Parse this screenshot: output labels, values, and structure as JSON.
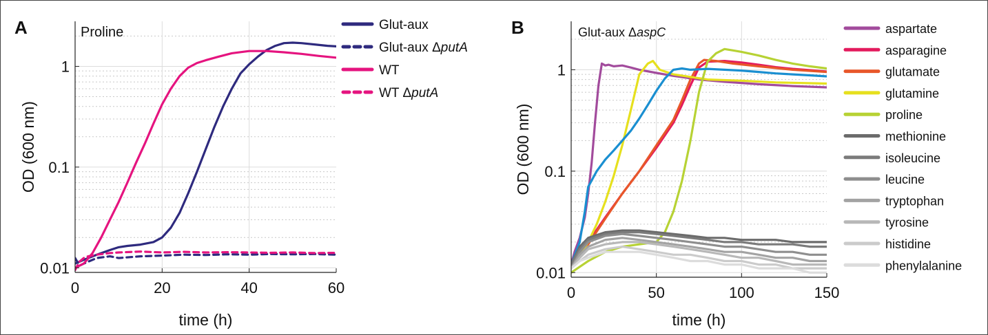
{
  "chart_data": [
    {
      "type": "line",
      "panel_label": "A",
      "title": "Proline",
      "xlabel": "time (h)",
      "ylabel": "OD (600 nm)",
      "xlim": [
        0,
        60
      ],
      "ylim": [
        0.009,
        2.8
      ],
      "yscale": "log",
      "grid": true,
      "legend_position": "outside-right",
      "xticks": [
        0,
        20,
        40,
        60
      ],
      "xtick_labels": [
        "0",
        "20",
        "40",
        "60"
      ],
      "yticks": [
        0.01,
        0.1,
        1
      ],
      "ytick_labels": [
        "0.01",
        "0.1",
        "1"
      ],
      "series": [
        {
          "name": "Glut-aux",
          "color": "#2e2a7e",
          "dash": "solid",
          "x": [
            0,
            2,
            5,
            8,
            10,
            12,
            15,
            18,
            20,
            22,
            24,
            26,
            28,
            30,
            32,
            34,
            36,
            38,
            40,
            42,
            44,
            46,
            48,
            50,
            52,
            55,
            58,
            60
          ],
          "y": [
            0.011,
            0.012,
            0.0135,
            0.015,
            0.016,
            0.0165,
            0.017,
            0.018,
            0.02,
            0.025,
            0.035,
            0.055,
            0.09,
            0.15,
            0.25,
            0.4,
            0.6,
            0.85,
            1.05,
            1.25,
            1.45,
            1.6,
            1.7,
            1.72,
            1.7,
            1.65,
            1.6,
            1.58
          ]
        },
        {
          "name": "Glut-aux ΔputA",
          "color": "#2e2a7e",
          "dash": "dashed",
          "x": [
            0,
            1,
            2,
            3,
            5,
            8,
            10,
            15,
            20,
            25,
            30,
            35,
            40,
            45,
            50,
            55,
            60
          ],
          "y": [
            0.0125,
            0.0105,
            0.011,
            0.0115,
            0.0125,
            0.013,
            0.0125,
            0.013,
            0.0132,
            0.0135,
            0.0134,
            0.0136,
            0.0135,
            0.0137,
            0.0136,
            0.0137,
            0.0135
          ]
        },
        {
          "name": "WT",
          "color": "#e5147f",
          "dash": "solid",
          "x": [
            0,
            2,
            4,
            6,
            8,
            10,
            12,
            14,
            16,
            18,
            20,
            22,
            24,
            26,
            28,
            30,
            33,
            36,
            40,
            44,
            48,
            52,
            56,
            60
          ],
          "y": [
            0.01,
            0.011,
            0.014,
            0.02,
            0.03,
            0.045,
            0.07,
            0.11,
            0.17,
            0.27,
            0.42,
            0.6,
            0.8,
            0.97,
            1.08,
            1.15,
            1.25,
            1.35,
            1.42,
            1.42,
            1.38,
            1.33,
            1.27,
            1.22
          ]
        },
        {
          "name": "WT ΔputA",
          "color": "#e5147f",
          "dash": "dashed",
          "x": [
            0,
            1,
            2,
            3,
            5,
            8,
            10,
            15,
            20,
            25,
            30,
            35,
            40,
            45,
            50,
            55,
            60
          ],
          "y": [
            0.0095,
            0.0115,
            0.0125,
            0.013,
            0.0135,
            0.014,
            0.0142,
            0.0145,
            0.0142,
            0.0144,
            0.0142,
            0.0143,
            0.0142,
            0.0141,
            0.0142,
            0.014,
            0.0141
          ]
        }
      ]
    },
    {
      "type": "line",
      "panel_label": "B",
      "title": "Glut-aux ΔaspC",
      "xlabel": "time (h)",
      "ylabel": "OD (600 nm)",
      "xlim": [
        0,
        150
      ],
      "ylim": [
        0.009,
        3.0
      ],
      "yscale": "log",
      "grid": true,
      "legend_position": "outside-right",
      "xticks": [
        0,
        50,
        100,
        150
      ],
      "xtick_labels": [
        "0",
        "50",
        "100",
        "150"
      ],
      "yticks": [
        0.01,
        0.1,
        1
      ],
      "ytick_labels": [
        "0.01",
        "0.1",
        "1"
      ],
      "series": [
        {
          "name": "aspartate",
          "color": "#a24b9c",
          "x": [
            0,
            2,
            5,
            8,
            10,
            12,
            14,
            16,
            18,
            20,
            22,
            25,
            30,
            35,
            40,
            50,
            60,
            75,
            90,
            110,
            130,
            150
          ],
          "y": [
            0.012,
            0.016,
            0.022,
            0.035,
            0.06,
            0.12,
            0.3,
            0.7,
            1.15,
            1.1,
            1.12,
            1.08,
            1.1,
            1.05,
            1.0,
            0.93,
            0.87,
            0.8,
            0.76,
            0.72,
            0.69,
            0.67
          ]
        },
        {
          "name": "asparagine",
          "color": "#e31b5d",
          "x": [
            0,
            10,
            20,
            30,
            40,
            50,
            60,
            65,
            70,
            75,
            80,
            90,
            100,
            110,
            120,
            130,
            140,
            150
          ],
          "y": [
            0.013,
            0.02,
            0.035,
            0.06,
            0.1,
            0.17,
            0.3,
            0.45,
            0.7,
            1.05,
            1.2,
            1.22,
            1.18,
            1.12,
            1.06,
            1.02,
            0.99,
            0.96
          ]
        },
        {
          "name": "glutamate",
          "color": "#e8572a",
          "x": [
            0,
            10,
            20,
            30,
            40,
            50,
            60,
            65,
            70,
            75,
            78,
            85,
            95,
            110,
            130,
            150
          ],
          "y": [
            0.012,
            0.019,
            0.034,
            0.06,
            0.1,
            0.18,
            0.32,
            0.5,
            0.8,
            1.15,
            1.25,
            1.22,
            1.15,
            1.08,
            1.0,
            0.95
          ]
        },
        {
          "name": "glutamine",
          "color": "#e6e01e",
          "x": [
            0,
            5,
            10,
            15,
            20,
            25,
            30,
            35,
            40,
            45,
            48,
            52,
            60,
            70,
            80,
            100,
            120,
            150
          ],
          "y": [
            0.012,
            0.015,
            0.02,
            0.03,
            0.05,
            0.09,
            0.18,
            0.4,
            0.9,
            1.15,
            1.22,
            1.0,
            0.9,
            0.85,
            0.8,
            0.78,
            0.75,
            0.73
          ]
        },
        {
          "name": "proline",
          "color": "#b7d234",
          "x": [
            0,
            10,
            20,
            30,
            40,
            50,
            55,
            60,
            65,
            70,
            75,
            80,
            85,
            90,
            95,
            100,
            110,
            120,
            130,
            140,
            150
          ],
          "y": [
            0.01,
            0.013,
            0.016,
            0.018,
            0.019,
            0.02,
            0.025,
            0.04,
            0.08,
            0.2,
            0.6,
            1.2,
            1.45,
            1.6,
            1.55,
            1.5,
            1.38,
            1.25,
            1.15,
            1.08,
            1.03
          ]
        },
        {
          "name": "",
          "color": "#1a8fd1",
          "x": [
            0,
            5,
            8,
            10,
            15,
            20,
            25,
            30,
            35,
            40,
            45,
            50,
            55,
            60,
            65,
            70,
            80,
            90,
            100,
            110,
            120,
            130,
            140,
            150
          ],
          "y": [
            0.012,
            0.02,
            0.04,
            0.07,
            0.1,
            0.13,
            0.16,
            0.2,
            0.25,
            0.33,
            0.45,
            0.62,
            0.82,
            1.0,
            1.03,
            1.0,
            1.02,
            1.0,
            0.98,
            0.95,
            0.92,
            0.9,
            0.88,
            0.86
          ]
        },
        {
          "name": "methionine",
          "color": "#6b6b6b",
          "x": [
            0,
            5,
            10,
            20,
            30,
            40,
            50,
            60,
            70,
            80,
            90,
            100,
            110,
            120,
            130,
            140,
            150
          ],
          "y": [
            0.012,
            0.018,
            0.022,
            0.025,
            0.026,
            0.026,
            0.025,
            0.024,
            0.023,
            0.022,
            0.022,
            0.021,
            0.021,
            0.021,
            0.02,
            0.02,
            0.02
          ]
        },
        {
          "name": "isoleucine",
          "color": "#7b7b7b",
          "x": [
            0,
            5,
            10,
            20,
            30,
            40,
            50,
            60,
            70,
            80,
            90,
            100,
            110,
            120,
            130,
            140,
            150
          ],
          "y": [
            0.012,
            0.017,
            0.021,
            0.024,
            0.025,
            0.025,
            0.024,
            0.023,
            0.022,
            0.021,
            0.02,
            0.02,
            0.019,
            0.019,
            0.019,
            0.018,
            0.018
          ]
        },
        {
          "name": "leucine",
          "color": "#8e8e8e",
          "x": [
            0,
            5,
            10,
            20,
            30,
            40,
            50,
            60,
            70,
            80,
            90,
            100,
            110,
            120,
            130,
            140,
            150
          ],
          "y": [
            0.011,
            0.016,
            0.02,
            0.023,
            0.024,
            0.023,
            0.022,
            0.021,
            0.02,
            0.019,
            0.018,
            0.018,
            0.017,
            0.016,
            0.016,
            0.015,
            0.015
          ]
        },
        {
          "name": "tryptophan",
          "color": "#a3a3a3",
          "x": [
            0,
            5,
            10,
            20,
            30,
            40,
            50,
            60,
            70,
            80,
            90,
            100,
            110,
            120,
            130,
            140,
            150
          ],
          "y": [
            0.011,
            0.015,
            0.018,
            0.021,
            0.022,
            0.021,
            0.02,
            0.019,
            0.018,
            0.017,
            0.016,
            0.016,
            0.015,
            0.014,
            0.014,
            0.013,
            0.013
          ]
        },
        {
          "name": "tyrosine",
          "color": "#b8b8b8",
          "x": [
            0,
            5,
            10,
            20,
            30,
            40,
            50,
            60,
            70,
            80,
            90,
            100,
            110,
            120,
            130,
            140,
            150
          ],
          "y": [
            0.011,
            0.014,
            0.017,
            0.019,
            0.02,
            0.02,
            0.019,
            0.018,
            0.017,
            0.016,
            0.015,
            0.014,
            0.014,
            0.013,
            0.012,
            0.012,
            0.012
          ]
        },
        {
          "name": "histidine",
          "color": "#cbcbcb",
          "x": [
            0,
            5,
            10,
            20,
            30,
            40,
            50,
            60,
            70,
            80,
            90,
            100,
            110,
            120,
            130,
            140,
            150
          ],
          "y": [
            0.011,
            0.013,
            0.015,
            0.017,
            0.018,
            0.017,
            0.016,
            0.015,
            0.015,
            0.014,
            0.013,
            0.013,
            0.012,
            0.012,
            0.011,
            0.011,
            0.011
          ]
        },
        {
          "name": "phenylalanine",
          "color": "#dcdcdc",
          "x": [
            0,
            5,
            10,
            20,
            30,
            40,
            50,
            60,
            70,
            80,
            90,
            100,
            110,
            120,
            130,
            140,
            150
          ],
          "y": [
            0.011,
            0.013,
            0.014,
            0.016,
            0.016,
            0.016,
            0.015,
            0.014,
            0.013,
            0.013,
            0.012,
            0.012,
            0.011,
            0.011,
            0.011,
            0.01,
            0.01
          ]
        }
      ]
    }
  ]
}
